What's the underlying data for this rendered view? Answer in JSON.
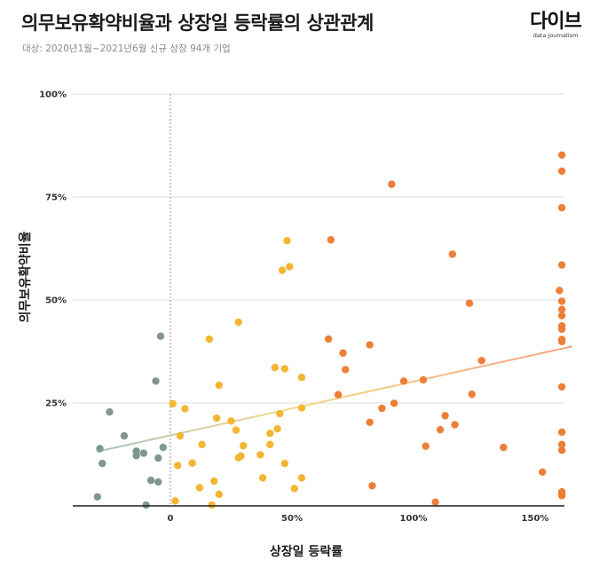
{
  "header": {
    "title": "의무보유확약비율과 상장일 등락률의 상관관계",
    "subtitle": "대상: 2020년1월~2021년6월 신규 상장 94개 기업",
    "logo_main": "다이브",
    "logo_sub": "data journalism"
  },
  "chart_data": {
    "type": "scatter",
    "xlabel": "상장일 등락률",
    "ylabel": "의무보유확약비율",
    "xlim": [
      -40,
      165
    ],
    "ylim": [
      0,
      100
    ],
    "x_ticks": [
      0,
      50,
      100,
      150
    ],
    "x_tick_labels": [
      "0",
      "50%",
      "100%",
      "150%"
    ],
    "y_ticks": [
      25,
      50,
      75,
      100
    ],
    "y_tick_labels": [
      "25%",
      "50%",
      "75%",
      "100%"
    ],
    "grid": "horizontal",
    "zero_line": "dashed vertical at x=0",
    "trend_line": {
      "x": [
        -30,
        165
      ],
      "y": [
        13.2,
        38.7
      ]
    },
    "colors": {
      "negative": "#7f978f",
      "mid": "#f2b632",
      "high": "#ee7f38",
      "trend_start": "#a9c3ba",
      "trend_mid": "#f7d98a",
      "trend_end": "#f5a47e",
      "grid": "#dddddd",
      "axis": "#222222"
    },
    "points": [
      [
        -30,
        2.2
      ],
      [
        -29,
        13.9
      ],
      [
        -28,
        10.3
      ],
      [
        -25,
        22.8
      ],
      [
        -19,
        17
      ],
      [
        -14,
        13.3
      ],
      [
        -14,
        12.2
      ],
      [
        -11,
        12.8
      ],
      [
        -10,
        0.2
      ],
      [
        -8,
        6.2
      ],
      [
        -6,
        30.3
      ],
      [
        -5,
        11.6
      ],
      [
        -5,
        5.8
      ],
      [
        -4,
        41.2
      ],
      [
        -3,
        14.2
      ],
      [
        1,
        24.8
      ],
      [
        2,
        1.2
      ],
      [
        3,
        9.8
      ],
      [
        4,
        17
      ],
      [
        6,
        23.6
      ],
      [
        9,
        10.4
      ],
      [
        12,
        4.4
      ],
      [
        13,
        14.9
      ],
      [
        16,
        40.5
      ],
      [
        17,
        0.2
      ],
      [
        18,
        6
      ],
      [
        19,
        21.3
      ],
      [
        20,
        2.8
      ],
      [
        20,
        29.3
      ],
      [
        25,
        20.6
      ],
      [
        27,
        18.4
      ],
      [
        28,
        11.7
      ],
      [
        28,
        44.6
      ],
      [
        29,
        12.1
      ],
      [
        30,
        14.6
      ],
      [
        37,
        12.4
      ],
      [
        38,
        6.8
      ],
      [
        41,
        17.6
      ],
      [
        41,
        14.9
      ],
      [
        43,
        33.6
      ],
      [
        44,
        18.7
      ],
      [
        45,
        22.4
      ],
      [
        46,
        57.2
      ],
      [
        47,
        10.3
      ],
      [
        47,
        33.3
      ],
      [
        48,
        64.4
      ],
      [
        49,
        58.1
      ],
      [
        51,
        4.2
      ],
      [
        54,
        23.8
      ],
      [
        54,
        6.8
      ],
      [
        54,
        31.2
      ],
      [
        65,
        40.5
      ],
      [
        66,
        64.6
      ],
      [
        69,
        27
      ],
      [
        71,
        37.1
      ],
      [
        72,
        33.1
      ],
      [
        82,
        39.1
      ],
      [
        82,
        20.3
      ],
      [
        83,
        4.9
      ],
      [
        87,
        23.7
      ],
      [
        91,
        78.1
      ],
      [
        92,
        24.9
      ],
      [
        96,
        30.3
      ],
      [
        104,
        30.6
      ],
      [
        105,
        14.5
      ],
      [
        109,
        0.9
      ],
      [
        111,
        18.5
      ],
      [
        113,
        21.9
      ],
      [
        116,
        61.1
      ],
      [
        117,
        19.7
      ],
      [
        123,
        49.2
      ],
      [
        124,
        27.1
      ],
      [
        128,
        35.3
      ],
      [
        137,
        14.2
      ],
      [
        153,
        8.2
      ],
      [
        160,
        52.3
      ],
      [
        161,
        13.5
      ],
      [
        161,
        14.9
      ],
      [
        161,
        17.9
      ],
      [
        161,
        28.9
      ],
      [
        161,
        39.9
      ],
      [
        161,
        40.4
      ],
      [
        161,
        42.9
      ],
      [
        161,
        43.7
      ],
      [
        161,
        46.2
      ],
      [
        161,
        47.7
      ],
      [
        161,
        49.7
      ],
      [
        161,
        58.5
      ],
      [
        161,
        72.4
      ],
      [
        161,
        81.3
      ],
      [
        161,
        85.2
      ],
      [
        161,
        2.8
      ],
      [
        161,
        3.4
      ],
      [
        161,
        2.5
      ]
    ]
  }
}
